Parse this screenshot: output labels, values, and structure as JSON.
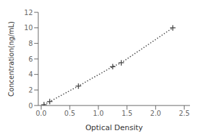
{
  "chart_data": {
    "type": "line",
    "x": [
      0.05,
      0.15,
      0.65,
      1.25,
      1.4,
      2.3
    ],
    "values": [
      0.1,
      0.5,
      2.5,
      5.0,
      5.5,
      10.0
    ],
    "xlabel": "Optical Density",
    "ylabel": "Concentration(ng/mL)",
    "xlim": [
      -0.05,
      2.6
    ],
    "ylim": [
      0,
      12
    ],
    "xticks": [
      {
        "value": 0,
        "label": "0.0"
      },
      0.5,
      {
        "value": 1,
        "label": "1.0"
      },
      1.5,
      {
        "value": 2,
        "label": "2.0"
      },
      2.5
    ],
    "yticks": [
      0,
      2,
      4,
      6,
      8,
      10,
      12
    ],
    "color": "#444444",
    "marker": "plus",
    "line_style": "dotted",
    "grid": false
  }
}
